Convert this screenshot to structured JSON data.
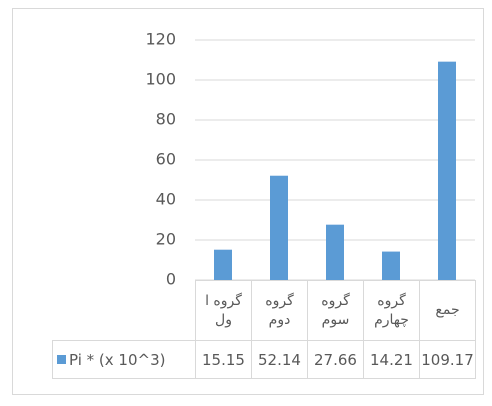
{
  "chart_data": {
    "type": "bar",
    "categories": [
      "گروه اول",
      "گروه دوم",
      "گروه سوم",
      "گروه چهارم",
      "جمع"
    ],
    "series": [
      {
        "name": "Pi * (x 10^3)",
        "color": "#5b9bd5",
        "values": [
          15.15,
          52.14,
          27.66,
          14.21,
          109.17
        ]
      }
    ],
    "ylim": [
      0,
      120
    ],
    "yticks": [
      0,
      20,
      40,
      60,
      80,
      100,
      120
    ],
    "grid": true,
    "data_table": true
  }
}
